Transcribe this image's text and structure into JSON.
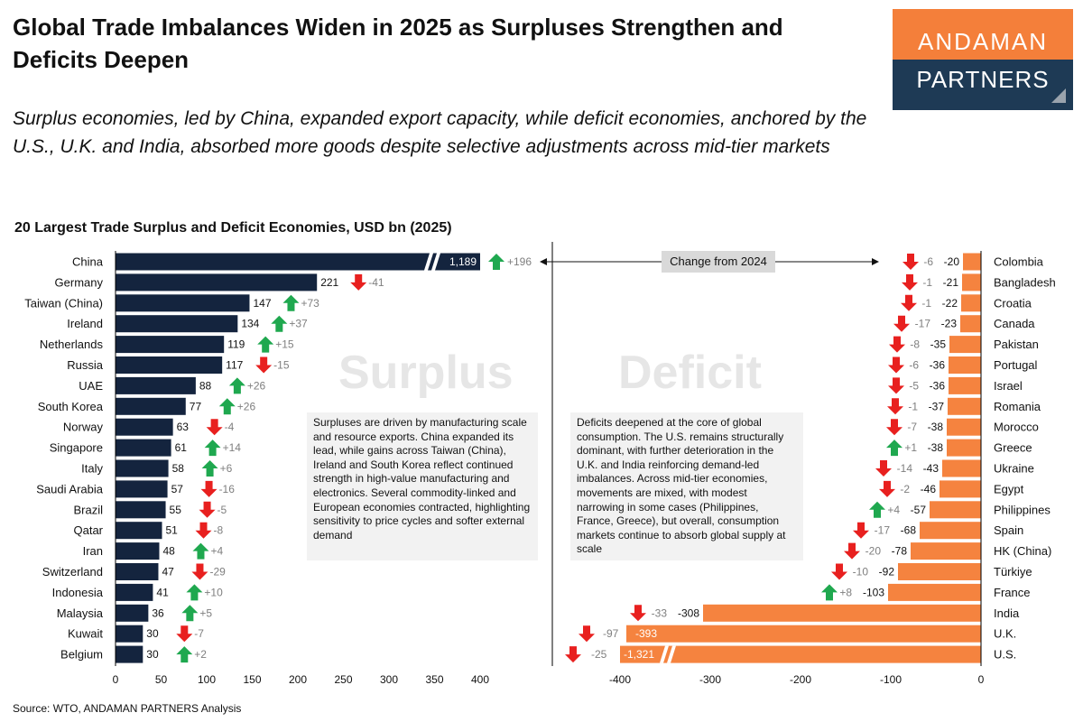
{
  "header": {
    "title": "Global Trade Imbalances Widen in 2025 as Surpluses Strengthen and Deficits Deepen",
    "subtitle": "Surplus economies, led by China, expanded export capacity, while deficit economies, anchored by the U.S., U.K. and India, absorbed more goods despite selective adjustments across mid-tier markets"
  },
  "logo": {
    "line1": "ANDAMAN",
    "line2": "PARTNERS"
  },
  "source": "Source: WTO, ANDAMAN PARTNERS Analysis",
  "annotations": {
    "surplus_watermark": "Surplus",
    "deficit_watermark": "Deficit",
    "change_label": "Change from 2024",
    "surplus_note": "Surpluses are driven by manufacturing scale and resource exports. China expanded its lead, while gains across Taiwan (China), Ireland and South Korea reflect continued strength in high-value manufacturing and electronics. Several commodity-linked and European economies contracted, highlighting sensitivity to price cycles and softer external demand",
    "deficit_note": "Deficits deepened at the core of global consumption. The U.S. remains structurally dominant, with further deterioration in the U.K. and India reinforcing demand-led imbalances. Across mid-tier economies, movements are mixed, with modest narrowing in some cases (Philippines, France, Greece), but overall, consumption markets continue to absorb global supply at scale"
  },
  "colors": {
    "surplus_bar": "#14243E",
    "deficit_bar": "#F5833F",
    "increase_arrow": "#1FA84F",
    "decrease_arrow": "#E8201F",
    "change_text": "#7F7F7F"
  },
  "chart_data": [
    {
      "type": "bar",
      "orientation": "horizontal",
      "title": "20 Largest Trade Surplus and Deficit Economies, USD bn (2025)",
      "panel": "surplus",
      "categories": [
        "China",
        "Germany",
        "Taiwan (China)",
        "Ireland",
        "Netherlands",
        "Russia",
        "UAE",
        "South Korea",
        "Norway",
        "Singapore",
        "Italy",
        "Saudi Arabia",
        "Brazil",
        "Qatar",
        "Iran",
        "Switzerland",
        "Indonesia",
        "Malaysia",
        "Kuwait",
        "Belgium"
      ],
      "values": [
        1189,
        221,
        147,
        134,
        119,
        117,
        88,
        77,
        63,
        61,
        58,
        57,
        55,
        51,
        48,
        47,
        41,
        36,
        30,
        30
      ],
      "value_labels": [
        "1,189",
        "221",
        "147",
        "134",
        "119",
        "117",
        "88",
        "77",
        "63",
        "61",
        "58",
        "57",
        "55",
        "51",
        "48",
        "47",
        "41",
        "36",
        "30",
        "30"
      ],
      "change_from_2024": [
        196,
        -41,
        73,
        37,
        15,
        -15,
        26,
        26,
        -4,
        14,
        6,
        -16,
        -5,
        -8,
        4,
        -29,
        10,
        5,
        -7,
        2
      ],
      "change_labels": [
        "+196",
        "-41",
        "+73",
        "+37",
        "+15",
        "-15",
        "+26",
        "+26",
        "-4",
        "+14",
        "+6",
        "-16",
        "-5",
        "-8",
        "+4",
        "-29",
        "+10",
        "+5",
        "-7",
        "+2"
      ],
      "xlim": [
        0,
        400
      ],
      "xticks": [
        "0",
        "50",
        "100",
        "150",
        "200",
        "250",
        "300",
        "350",
        "400"
      ],
      "axis_break": true,
      "grid": false
    },
    {
      "type": "bar",
      "orientation": "horizontal",
      "panel": "deficit",
      "categories": [
        "Colombia",
        "Bangladesh",
        "Croatia",
        "Canada",
        "Pakistan",
        "Portugal",
        "Israel",
        "Romania",
        "Morocco",
        "Greece",
        "Ukraine",
        "Egypt",
        "Philippines",
        "Spain",
        "HK (China)",
        "Türkiye",
        "France",
        "India",
        "U.K.",
        "U.S."
      ],
      "values": [
        -20,
        -21,
        -22,
        -23,
        -35,
        -36,
        -36,
        -37,
        -38,
        -38,
        -43,
        -46,
        -57,
        -68,
        -78,
        -92,
        -103,
        -308,
        -393,
        -1321
      ],
      "value_labels": [
        "-20",
        "-21",
        "-22",
        "-23",
        "-35",
        "-36",
        "-36",
        "-37",
        "-38",
        "-38",
        "-43",
        "-46",
        "-57",
        "-68",
        "-78",
        "-92",
        "-103",
        "-308",
        "-393",
        "-1,321"
      ],
      "change_from_2024": [
        -6,
        -1,
        -1,
        -17,
        -8,
        -6,
        -5,
        -1,
        -7,
        1,
        -14,
        -2,
        4,
        -17,
        -20,
        -10,
        8,
        -33,
        -97,
        -25
      ],
      "change_labels": [
        "-6",
        "-1",
        "-1",
        "-17",
        "-8",
        "-6",
        "-5",
        "-1",
        "-7",
        "+1",
        "-14",
        "-2",
        "+4",
        "-17",
        "-20",
        "-10",
        "+8",
        "-33",
        "-97",
        "-25"
      ],
      "xlim": [
        -400,
        0
      ],
      "xticks": [
        "-400",
        "-300",
        "-200",
        "-100",
        "0"
      ],
      "axis_break": true,
      "grid": false
    }
  ]
}
